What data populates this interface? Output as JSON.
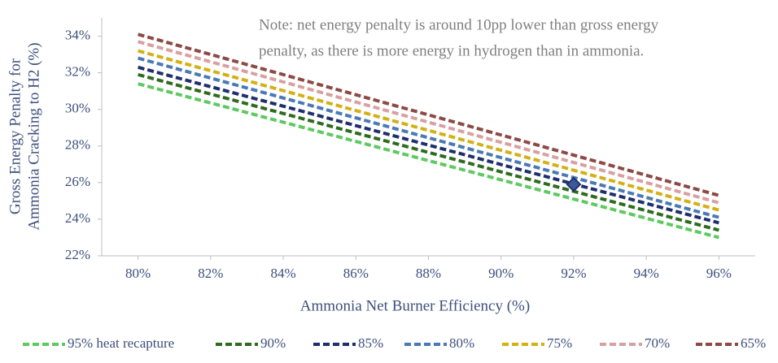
{
  "chart_data": {
    "type": "line",
    "note": [
      "Note: net energy penalty is around 10pp lower than gross energy",
      "penalty, as there is more energy in hydrogen than in ammonia."
    ],
    "x_label": "Ammonia Net Burner Efficiency (%)",
    "y_label": [
      "Gross Energy Penalty for",
      "Ammonia Cracking to H2 (%)"
    ],
    "x": [
      80,
      96
    ],
    "series": [
      {
        "name": "95% heat recapture",
        "color": "#5ec962",
        "values": [
          31.4,
          23.0
        ]
      },
      {
        "name": "90%",
        "color": "#2e6b1f",
        "values": [
          31.9,
          23.4
        ]
      },
      {
        "name": "85%",
        "color": "#1f2f6e",
        "values": [
          32.3,
          23.8
        ]
      },
      {
        "name": "80%",
        "color": "#4a7ab5",
        "values": [
          32.8,
          24.1
        ]
      },
      {
        "name": "75%",
        "color": "#d4b015",
        "values": [
          33.2,
          24.5
        ]
      },
      {
        "name": "70%",
        "color": "#d8a0a0",
        "values": [
          33.7,
          24.9
        ]
      },
      {
        "name": "65%",
        "color": "#8b4a45",
        "values": [
          34.1,
          25.3
        ]
      }
    ],
    "marker": {
      "x": 92,
      "y": 25.9,
      "color": "#3a5a9c"
    },
    "xlim": [
      79,
      97
    ],
    "xticks": [
      {
        "value": 80,
        "label": "80%"
      },
      {
        "value": 82,
        "label": "82%"
      },
      {
        "value": 84,
        "label": "84%"
      },
      {
        "value": 86,
        "label": "86%"
      },
      {
        "value": 88,
        "label": "88%"
      },
      {
        "value": 90,
        "label": "90%"
      },
      {
        "value": 92,
        "label": "92%"
      },
      {
        "value": 94,
        "label": "94%"
      },
      {
        "value": 96,
        "label": "96%"
      }
    ],
    "ylim": [
      22,
      35
    ],
    "yticks": [
      {
        "value": 22,
        "label": "22%"
      },
      {
        "value": 24,
        "label": "24%"
      },
      {
        "value": 26,
        "label": "26%"
      },
      {
        "value": 28,
        "label": "28%"
      },
      {
        "value": 30,
        "label": "30%"
      },
      {
        "value": 32,
        "label": "32%"
      },
      {
        "value": 34,
        "label": "34%"
      }
    ],
    "legend": "bottom"
  }
}
